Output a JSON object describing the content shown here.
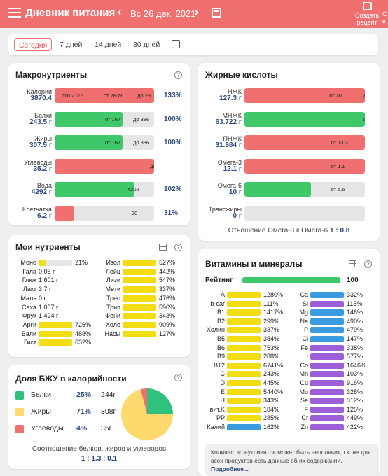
{
  "header": {
    "title": "Дневник питания",
    "prev": "‹",
    "next": "›",
    "date": "Вс 26 дек. 2021",
    "create_recipe_l1": "Создать",
    "create_recipe_l2": "рецепт",
    "cut_l1": "С",
    "cut_l2": "в"
  },
  "tabs": [
    "Сегодня",
    "7 дней",
    "14 дней",
    "30 дней"
  ],
  "macro": {
    "title": "Макронутриенты",
    "help": "?",
    "rows": [
      {
        "name": "Калории",
        "value": "3870.4",
        "color": "#f07070",
        "fill": 1,
        "texts": [
          [
            "min 2776",
            10
          ],
          [
            "от 2839",
            70
          ],
          [
            "до 2902",
            118
          ]
        ],
        "pct": "133%"
      },
      {
        "name": "Белки",
        "value": "243.5 г",
        "color": "#3ec86a",
        "fill": 0.68,
        "texts": [
          [
            "от 167",
            72
          ],
          [
            "до 386",
            112
          ]
        ],
        "pct": "100%"
      },
      {
        "name": "Жиры",
        "value": "307.5 г",
        "color": "#3ec86a",
        "fill": 0.68,
        "texts": [
          [
            "от 167",
            72
          ],
          [
            "до 386",
            112
          ]
        ],
        "pct": "100%"
      },
      {
        "name": "Углеводы",
        "value": "35.2 г",
        "color": "#f07070",
        "fill": 1,
        "texts": [
          [
            "до 21",
            136
          ]
        ],
        "pct": ""
      },
      {
        "name": "Вода",
        "value": "4292 г",
        "color": "#3ec86a",
        "fill": 0.8,
        "texts": [
          [
            "4202",
            104
          ]
        ],
        "pct": "102%"
      },
      {
        "name": "Клетчатка",
        "value": "6.2 г",
        "color": "#f07070",
        "fill": 0.2,
        "texts": [
          [
            "20",
            110
          ]
        ],
        "pct": "31%"
      }
    ]
  },
  "fatty": {
    "title": "Жирные кислоты",
    "rows": [
      {
        "name": "НЖК",
        "value": "127.3 г",
        "color": "#f07070",
        "fill": 1,
        "texts": [
          [
            "от 30",
            100
          ],
          [
            "до 100",
            140
          ]
        ]
      },
      {
        "name": "МНЖК",
        "value": "63.722 г",
        "color": "#3ec86a",
        "fill": 1,
        "texts": [
          [
            "от 20",
            140
          ]
        ]
      },
      {
        "name": "ПНЖК",
        "value": "31.984 г",
        "color": "#f07070",
        "fill": 1,
        "texts": [
          [
            "от 13.3",
            102
          ],
          [
            "до 24.4",
            142
          ]
        ]
      },
      {
        "name": "Омега-3",
        "value": "12.1 г",
        "color": "#f07070",
        "fill": 1,
        "texts": [
          [
            "от 1.1",
            102
          ],
          [
            "до 4.4",
            144
          ]
        ]
      },
      {
        "name": "Омега-6",
        "value": "10 г",
        "color": "#3ec86a",
        "fill": 0.55,
        "texts": [
          [
            "от 5.6",
            102
          ],
          [
            "до 20",
            146
          ]
        ]
      },
      {
        "name": "Трансжиры",
        "value": "0 г",
        "color": "#3ec86a",
        "fill": 0,
        "texts": [
          [
            "до 2.2",
            146
          ]
        ]
      }
    ],
    "ratio_label": "Отношение Омега-3 к Омега-6",
    "ratio_value": "1 : 0.8"
  },
  "mynutr": {
    "title": "Мои нутриенты",
    "help": "?",
    "left": [
      [
        "Моно",
        0.9,
        "21%",
        "#e6e6e6"
      ],
      [
        "Гала",
        0,
        "0.05 г",
        ""
      ],
      [
        "Глюк",
        0,
        "1.601 г",
        ""
      ],
      [
        "Лакт",
        0,
        "3.7 г",
        ""
      ],
      [
        "Маль",
        0,
        "0 г",
        ""
      ],
      [
        "Саха",
        0,
        "1.057 г",
        ""
      ],
      [
        "Фрук",
        0,
        "1.424 г",
        ""
      ],
      [
        "Арги",
        1,
        "726%",
        "#f2dd14"
      ],
      [
        "Вали",
        1,
        "488%",
        "#f2dd14"
      ],
      [
        "Гист",
        1,
        "632%",
        "#f2dd14"
      ]
    ],
    "right": [
      [
        "Изол",
        1,
        "527%"
      ],
      [
        "Лейц",
        1,
        "442%"
      ],
      [
        "Лизи",
        1,
        "547%"
      ],
      [
        "Мети",
        1,
        "337%"
      ],
      [
        "Трео",
        1,
        "476%"
      ],
      [
        "Трип",
        1,
        "590%"
      ],
      [
        "Фени",
        1,
        "343%"
      ],
      [
        "Холе",
        1,
        "909%"
      ],
      [
        "Насы",
        1,
        "127%"
      ]
    ]
  },
  "bju": {
    "title": "Доля БЖУ в калорийности",
    "help": "?",
    "rows": [
      {
        "name": "Белки",
        "pct": "25%",
        "g": "244г",
        "color": "#2ec27e"
      },
      {
        "name": "Жиры",
        "pct": "71%",
        "g": "308г",
        "color": "#fdd96e"
      },
      {
        "name": "Углеводы",
        "pct": "4%",
        "g": "35г",
        "color": "#f07070"
      }
    ],
    "shares": [
      25,
      71,
      4
    ],
    "ratio_label": "Соотношение белков, жиров и углеводов",
    "ratio_value": "1 : 1.3 : 0.1"
  },
  "vit": {
    "title": "Витамины и минералы",
    "help": "?",
    "rating_label": "Рейтинг",
    "rating_value": "100",
    "left": [
      [
        "A",
        "1280%",
        "#f2dd14"
      ],
      [
        "b-car",
        "111%",
        "#f2dd14"
      ],
      [
        "B1",
        "1417%",
        "#f2dd14"
      ],
      [
        "B2",
        "299%",
        "#f2dd14"
      ],
      [
        "Холин",
        "337%",
        "#f2dd14"
      ],
      [
        "B5",
        "384%",
        "#f2dd14"
      ],
      [
        "B6",
        "753%",
        "#f2dd14"
      ],
      [
        "B9",
        "288%",
        "#f2dd14"
      ],
      [
        "B12",
        "6741%",
        "#f2dd14"
      ],
      [
        "C",
        "243%",
        "#f2dd14"
      ],
      [
        "D",
        "445%",
        "#f2dd14"
      ],
      [
        "E",
        "5440%",
        "#f2dd14"
      ],
      [
        "H",
        "343%",
        "#f2dd14"
      ],
      [
        "вит.K",
        "184%",
        "#f2dd14"
      ],
      [
        "PP",
        "285%",
        "#f2dd14"
      ],
      [
        "Калий",
        "162%",
        "#3a9ce0"
      ]
    ],
    "right": [
      [
        "Ca",
        "332%",
        "#3a9ce0"
      ],
      [
        "Si",
        "115%",
        "#9d5fd8"
      ],
      [
        "Mg",
        "146%",
        "#3a9ce0"
      ],
      [
        "Na",
        "490%",
        "#3a9ce0"
      ],
      [
        "P",
        "479%",
        "#3a9ce0"
      ],
      [
        "Cl",
        "147%",
        "#3a9ce0"
      ],
      [
        "Fe",
        "338%",
        "#9d5fd8"
      ],
      [
        "I",
        "577%",
        "#9d5fd8"
      ],
      [
        "Co",
        "1646%",
        "#9d5fd8"
      ],
      [
        "Mn",
        "103%",
        "#9d5fd8"
      ],
      [
        "Cu",
        "916%",
        "#9d5fd8"
      ],
      [
        "Mo",
        "328%",
        "#9d5fd8"
      ],
      [
        "Se",
        "312%",
        "#9d5fd8"
      ],
      [
        "F",
        "125%",
        "#9d5fd8"
      ],
      [
        "Cr",
        "449%",
        "#9d5fd8"
      ],
      [
        "Zn",
        "422%",
        "#9d5fd8"
      ]
    ],
    "note": "Количество нутриентов может быть неполным, т.к. не для всех продуктов есть данные об их содержании.",
    "note_link": "Подробнее..."
  }
}
